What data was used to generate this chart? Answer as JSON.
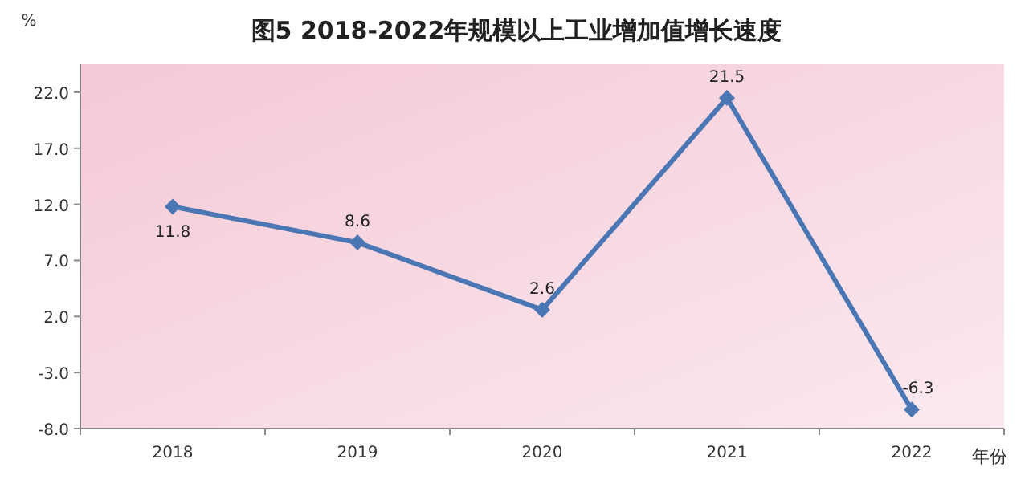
{
  "chart_data": {
    "type": "line",
    "title": "图5  2018-2022年规模以上工业增加值增长速度",
    "ylabel": "%",
    "xlabel": "年份",
    "categories": [
      "2018",
      "2019",
      "2020",
      "2021",
      "2022"
    ],
    "series": [
      {
        "color": "#4a76b4",
        "values": [
          11.8,
          8.6,
          2.6,
          21.5,
          -6.3
        ]
      }
    ],
    "ylim": [
      -8,
      24.5
    ],
    "yticks": [
      {
        "value": -8,
        "label": "-8.0"
      },
      {
        "value": -3,
        "label": "-3.0"
      },
      {
        "value": 2,
        "label": "2.0"
      },
      {
        "value": 7,
        "label": "7.0"
      },
      {
        "value": 12,
        "label": "12.0"
      },
      {
        "value": 17,
        "label": "17.0"
      },
      {
        "value": 22,
        "label": "22.0"
      }
    ],
    "marker": "diamond",
    "line_style": "solid",
    "data_labels": true
  }
}
